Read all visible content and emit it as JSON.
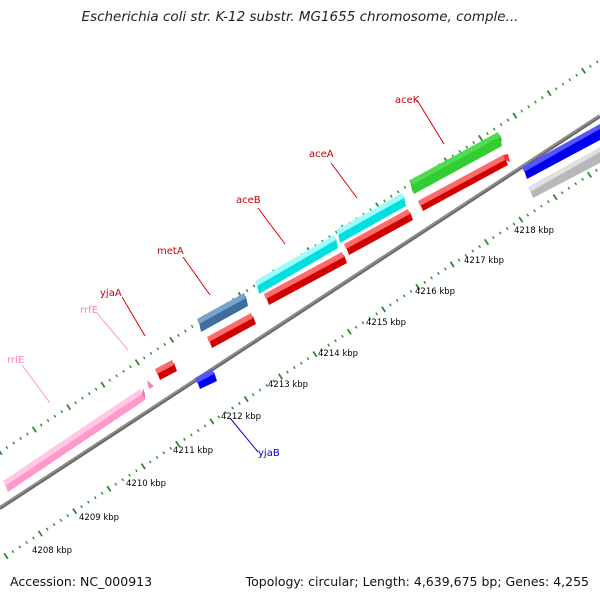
{
  "title": "Escherichia coli str. K-12 substr. MG1655 chromosome, comple...",
  "footer": {
    "accession": "Accession: NC_000913",
    "summary": "Topology: circular; Length: 4,639,675 bp; Genes: 4,255"
  },
  "colors": {
    "backbone": "#7f7f7f",
    "ticks": "#2e7d32",
    "gene_red": "#ff0000",
    "rRNA_pink": "#ff99cc",
    "tRNA_pink": "#ff80c0",
    "aceK_green": "#33cc33",
    "aceB_cyan": "#00ffff",
    "metA_steel": "#4a7fb5",
    "yjaB_blue": "#0000ff",
    "other_gray": "#c0c0c0"
  },
  "kbp_labels": [
    "4208 kbp",
    "4209 kbp",
    "4210 kbp",
    "4211 kbp",
    "4212 kbp",
    "4213 kbp",
    "4214 kbp",
    "4215 kbp",
    "4216 kbp",
    "4217 kbp",
    "4218 kbp"
  ],
  "gene_labels": [
    {
      "text": "aceK",
      "color": "#cc0000"
    },
    {
      "text": "aceA",
      "color": "#cc0000"
    },
    {
      "text": "aceB",
      "color": "#cc0000"
    },
    {
      "text": "metA",
      "color": "#cc0000"
    },
    {
      "text": "yjaA",
      "color": "#cc0000"
    },
    {
      "text": "rrfE",
      "color": "#ff80c0"
    },
    {
      "text": "rrlE",
      "color": "#ff80c0"
    },
    {
      "text": "yjaB",
      "color": "#0000cc"
    }
  ]
}
